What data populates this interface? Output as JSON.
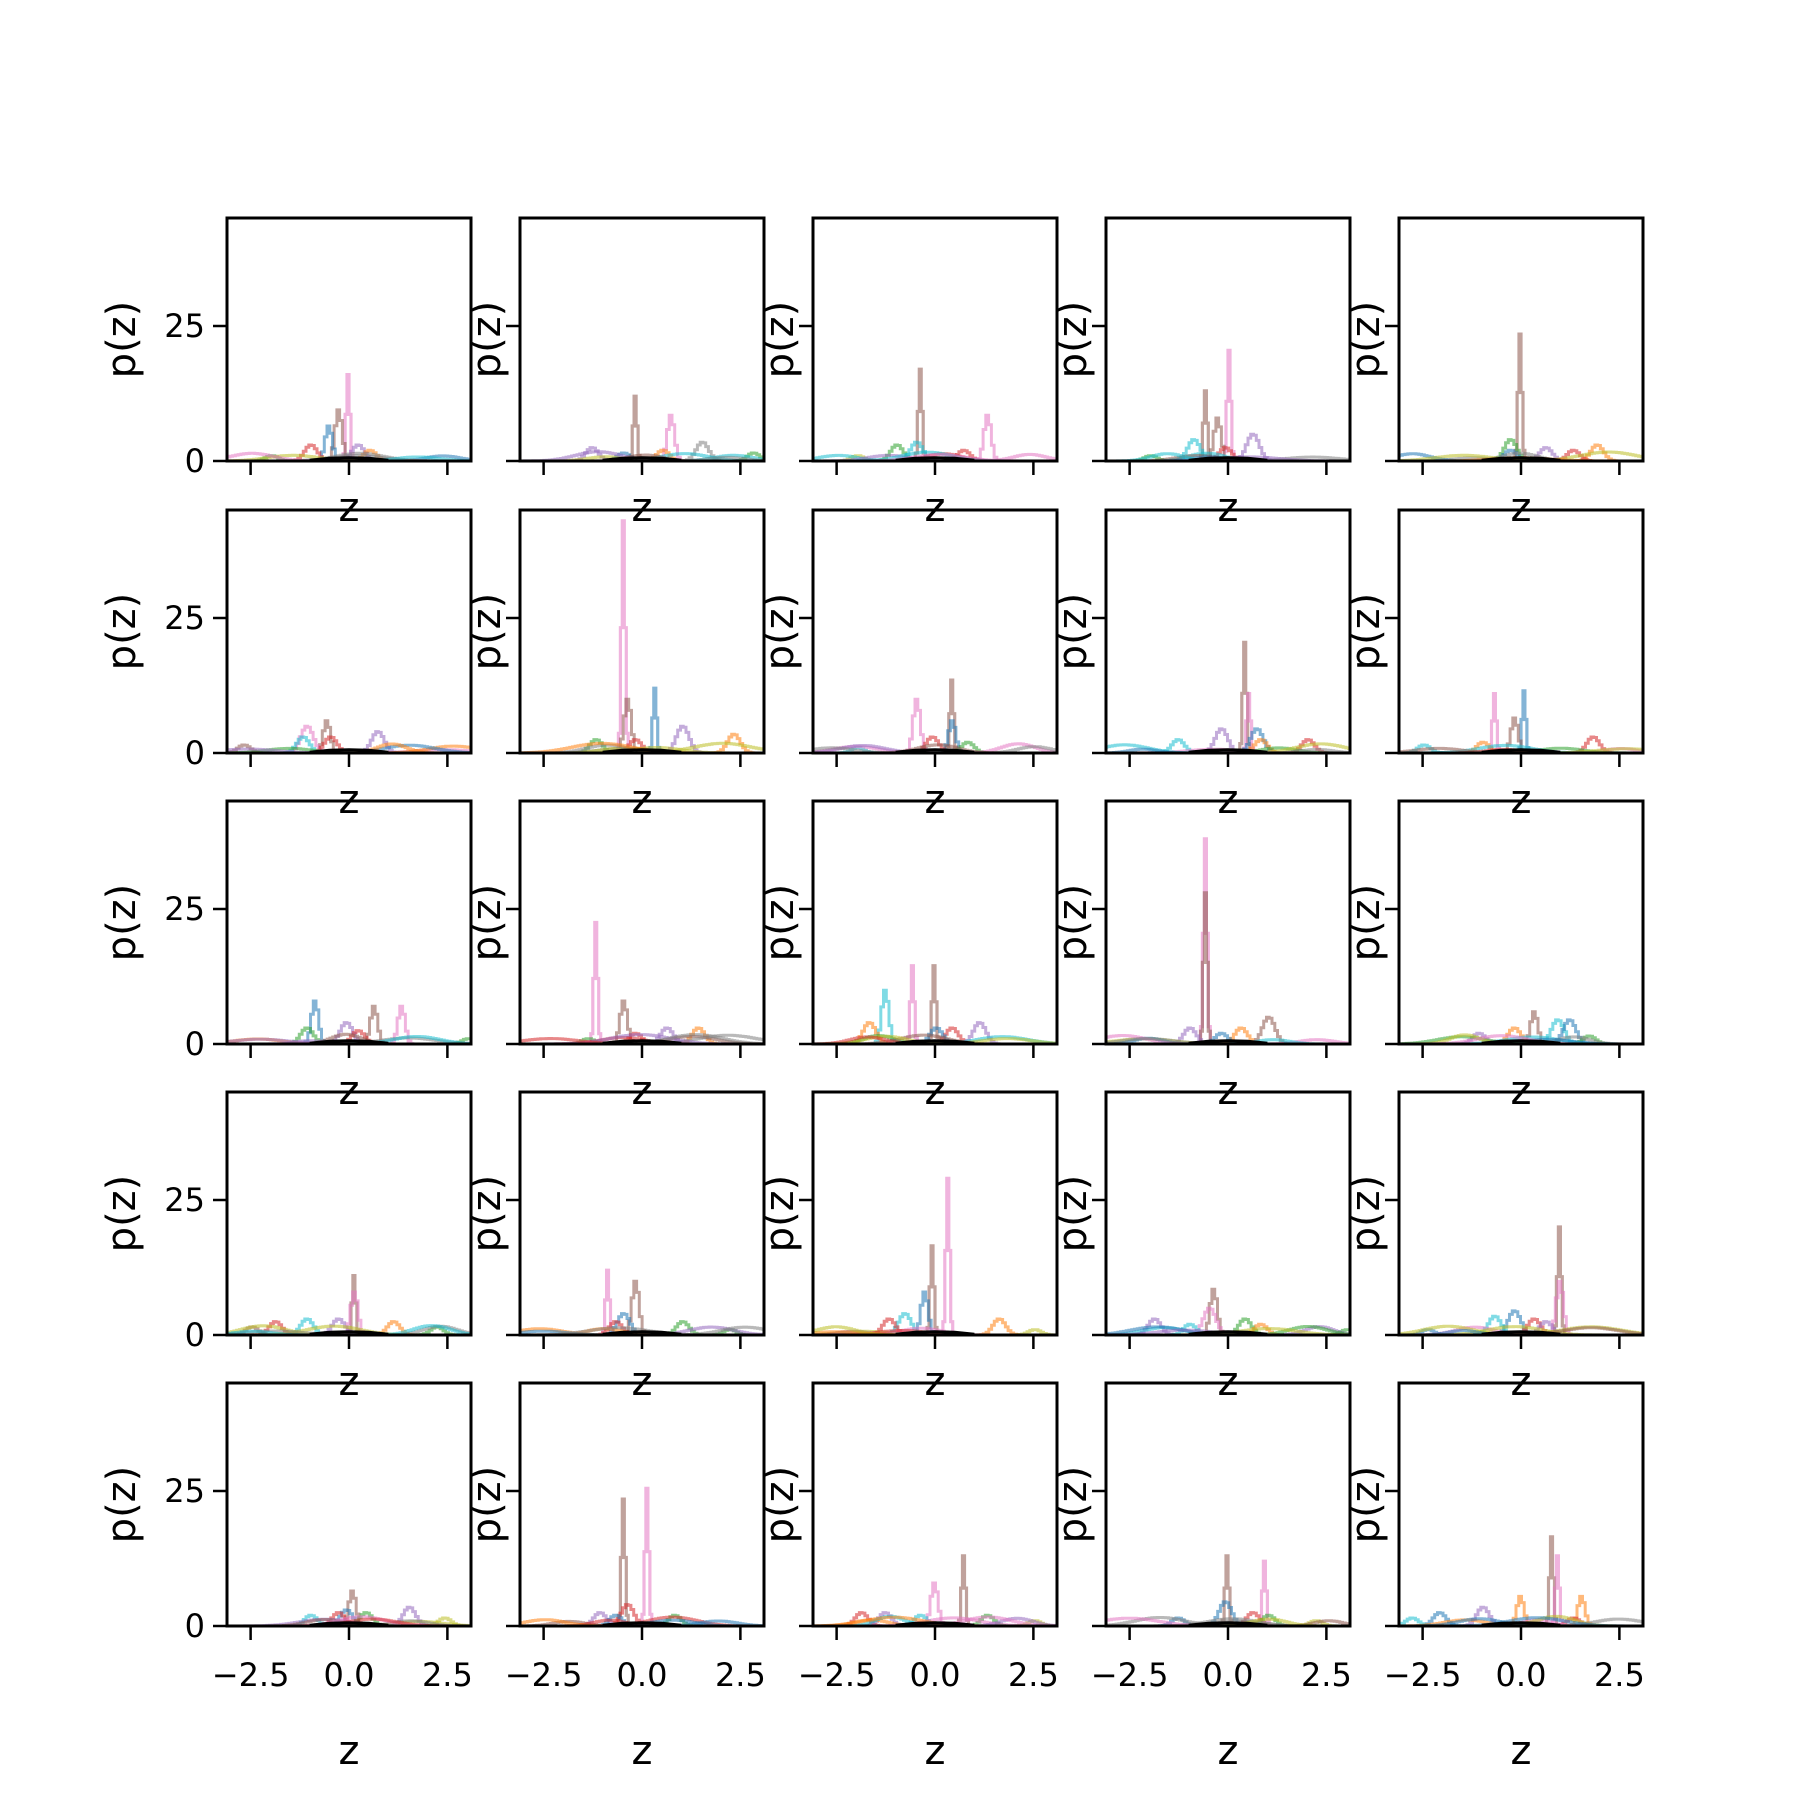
{
  "chart_data": {
    "type": "line",
    "layout": "5x5 grid of small multiples",
    "xlabel": "z",
    "ylabel": "p(z)",
    "xlim": [
      -3.1,
      3.1
    ],
    "ylim": [
      0,
      45
    ],
    "xticks": [
      -2.5,
      0.0,
      2.5
    ],
    "xtick_labels": [
      "−2.5",
      "0.0",
      "2.5"
    ],
    "yticks": [
      0,
      25
    ],
    "ytick_labels": [
      "0",
      "25"
    ],
    "line_alpha": 0.55,
    "series_colors": [
      "#1f77b4",
      "#ff7f0e",
      "#2ca02c",
      "#d62728",
      "#9467bd",
      "#8c564b",
      "#e377c2",
      "#7f7f7f",
      "#bcbd22",
      "#17becf"
    ],
    "baseline_color": "#000000",
    "panels": [
      {
        "row": 1,
        "col": 1,
        "peaks": [
          {
            "c": 6,
            "z": -0.05,
            "h": 16
          },
          {
            "c": 5,
            "z": -0.3,
            "h": 9.5
          },
          {
            "c": 0,
            "z": -0.55,
            "h": 6.5
          },
          {
            "c": 3,
            "z": -1.0,
            "h": 3
          },
          {
            "c": 2,
            "z": -2.0,
            "h": 1
          },
          {
            "c": 4,
            "z": 0.2,
            "h": 3
          },
          {
            "c": 1,
            "z": 0.5,
            "h": 2
          }
        ]
      },
      {
        "row": 1,
        "col": 2,
        "peaks": [
          {
            "c": 5,
            "z": -0.2,
            "h": 12
          },
          {
            "c": 6,
            "z": 0.7,
            "h": 8.5
          },
          {
            "c": 7,
            "z": 1.5,
            "h": 3.5
          },
          {
            "c": 4,
            "z": -1.3,
            "h": 2.5
          },
          {
            "c": 1,
            "z": 0.5,
            "h": 2
          },
          {
            "c": 2,
            "z": 2.8,
            "h": 1.5
          },
          {
            "c": 0,
            "z": -0.5,
            "h": 1.5
          }
        ]
      },
      {
        "row": 1,
        "col": 3,
        "peaks": [
          {
            "c": 5,
            "z": -0.4,
            "h": 17
          },
          {
            "c": 6,
            "z": 1.3,
            "h": 8.5
          },
          {
            "c": 2,
            "z": -1.0,
            "h": 3
          },
          {
            "c": 9,
            "z": -0.5,
            "h": 3.5
          },
          {
            "c": 3,
            "z": 0.7,
            "h": 2
          },
          {
            "c": 8,
            "z": -2.0,
            "h": 1
          }
        ]
      },
      {
        "row": 1,
        "col": 4,
        "peaks": [
          {
            "c": 6,
            "z": 0.0,
            "h": 20.5
          },
          {
            "c": 5,
            "z": -0.6,
            "h": 13
          },
          {
            "c": 5,
            "z": -0.3,
            "h": 8
          },
          {
            "c": 4,
            "z": 0.6,
            "h": 5
          },
          {
            "c": 9,
            "z": -0.9,
            "h": 4
          },
          {
            "c": 3,
            "z": -0.1,
            "h": 2.5
          },
          {
            "c": 2,
            "z": -2.0,
            "h": 1
          }
        ]
      },
      {
        "row": 1,
        "col": 5,
        "peaks": [
          {
            "c": 5,
            "z": -0.05,
            "h": 23.5
          },
          {
            "c": 2,
            "z": -0.3,
            "h": 4
          },
          {
            "c": 1,
            "z": 1.9,
            "h": 3
          },
          {
            "c": 4,
            "z": 0.6,
            "h": 2.5
          },
          {
            "c": 3,
            "z": 1.3,
            "h": 2
          },
          {
            "c": 0,
            "z": -0.3,
            "h": 2
          }
        ]
      },
      {
        "row": 2,
        "col": 1,
        "peaks": [
          {
            "c": 5,
            "z": -0.6,
            "h": 6
          },
          {
            "c": 6,
            "z": -1.1,
            "h": 5
          },
          {
            "c": 4,
            "z": 0.7,
            "h": 4
          },
          {
            "c": 3,
            "z": -0.5,
            "h": 3
          },
          {
            "c": 9,
            "z": -1.2,
            "h": 3
          },
          {
            "c": 5,
            "z": -2.7,
            "h": 1.5
          }
        ]
      },
      {
        "row": 2,
        "col": 2,
        "peaks": [
          {
            "c": 6,
            "z": -0.5,
            "h": 43
          },
          {
            "c": 0,
            "z": 0.3,
            "h": 12
          },
          {
            "c": 5,
            "z": -0.4,
            "h": 10
          },
          {
            "c": 4,
            "z": 1.0,
            "h": 5
          },
          {
            "c": 1,
            "z": 2.3,
            "h": 3.5
          },
          {
            "c": 2,
            "z": -1.2,
            "h": 2.5
          },
          {
            "c": 3,
            "z": -0.2,
            "h": 2.5
          }
        ]
      },
      {
        "row": 2,
        "col": 3,
        "peaks": [
          {
            "c": 5,
            "z": 0.4,
            "h": 13.5
          },
          {
            "c": 6,
            "z": -0.5,
            "h": 10
          },
          {
            "c": 0,
            "z": 0.4,
            "h": 6
          },
          {
            "c": 3,
            "z": -0.1,
            "h": 3
          },
          {
            "c": 2,
            "z": 0.8,
            "h": 2
          },
          {
            "c": 9,
            "z": -2.0,
            "h": 1
          }
        ]
      },
      {
        "row": 2,
        "col": 4,
        "peaks": [
          {
            "c": 5,
            "z": 0.4,
            "h": 20.5
          },
          {
            "c": 6,
            "z": 0.5,
            "h": 11
          },
          {
            "c": 0,
            "z": 0.7,
            "h": 4.5
          },
          {
            "c": 4,
            "z": -0.2,
            "h": 4.5
          },
          {
            "c": 3,
            "z": 2.0,
            "h": 2.5
          },
          {
            "c": 9,
            "z": -1.3,
            "h": 2.5
          },
          {
            "c": 1,
            "z": 0.8,
            "h": 2.5
          }
        ]
      },
      {
        "row": 2,
        "col": 5,
        "peaks": [
          {
            "c": 0,
            "z": 0.05,
            "h": 11.5
          },
          {
            "c": 6,
            "z": -0.7,
            "h": 11
          },
          {
            "c": 5,
            "z": -0.2,
            "h": 6.5
          },
          {
            "c": 3,
            "z": 1.8,
            "h": 3
          },
          {
            "c": 1,
            "z": -1.0,
            "h": 2
          },
          {
            "c": 9,
            "z": -2.5,
            "h": 1.5
          }
        ]
      },
      {
        "row": 3,
        "col": 1,
        "peaks": [
          {
            "c": 0,
            "z": -0.9,
            "h": 8
          },
          {
            "c": 6,
            "z": 1.3,
            "h": 7
          },
          {
            "c": 5,
            "z": 0.6,
            "h": 7
          },
          {
            "c": 4,
            "z": -0.1,
            "h": 4
          },
          {
            "c": 2,
            "z": -1.1,
            "h": 3
          },
          {
            "c": 3,
            "z": 0.2,
            "h": 2.5
          },
          {
            "c": 2,
            "z": 3.0,
            "h": 1
          }
        ]
      },
      {
        "row": 3,
        "col": 2,
        "peaks": [
          {
            "c": 6,
            "z": -1.2,
            "h": 22.5
          },
          {
            "c": 5,
            "z": -0.5,
            "h": 8
          },
          {
            "c": 4,
            "z": 0.6,
            "h": 3
          },
          {
            "c": 1,
            "z": 1.4,
            "h": 3
          },
          {
            "c": 3,
            "z": -0.2,
            "h": 2
          },
          {
            "c": 2,
            "z": -1.4,
            "h": 1
          }
        ]
      },
      {
        "row": 3,
        "col": 3,
        "peaks": [
          {
            "c": 5,
            "z": -0.05,
            "h": 14.5
          },
          {
            "c": 6,
            "z": -0.6,
            "h": 14.5
          },
          {
            "c": 9,
            "z": -1.3,
            "h": 10
          },
          {
            "c": 4,
            "z": 1.1,
            "h": 4
          },
          {
            "c": 1,
            "z": -1.7,
            "h": 4
          },
          {
            "c": 3,
            "z": 0.4,
            "h": 3
          },
          {
            "c": 0,
            "z": 0.0,
            "h": 3
          }
        ]
      },
      {
        "row": 3,
        "col": 4,
        "peaks": [
          {
            "c": 6,
            "z": -0.6,
            "h": 38
          },
          {
            "c": 5,
            "z": -0.6,
            "h": 28
          },
          {
            "c": 5,
            "z": 1.0,
            "h": 5
          },
          {
            "c": 4,
            "z": -1.0,
            "h": 3
          },
          {
            "c": 1,
            "z": 0.3,
            "h": 3
          },
          {
            "c": 0,
            "z": -0.2,
            "h": 2
          }
        ]
      },
      {
        "row": 3,
        "col": 5,
        "peaks": [
          {
            "c": 5,
            "z": 0.3,
            "h": 6
          },
          {
            "c": 9,
            "z": 0.9,
            "h": 4.5
          },
          {
            "c": 0,
            "z": 1.2,
            "h": 4.5
          },
          {
            "c": 1,
            "z": -0.2,
            "h": 3
          },
          {
            "c": 4,
            "z": -1.1,
            "h": 2
          },
          {
            "c": 2,
            "z": 1.7,
            "h": 1.5
          }
        ]
      },
      {
        "row": 4,
        "col": 1,
        "peaks": [
          {
            "c": 5,
            "z": 0.1,
            "h": 11
          },
          {
            "c": 6,
            "z": 0.1,
            "h": 8
          },
          {
            "c": 9,
            "z": -1.1,
            "h": 3
          },
          {
            "c": 4,
            "z": -0.3,
            "h": 3
          },
          {
            "c": 3,
            "z": -1.9,
            "h": 2.5
          },
          {
            "c": 1,
            "z": 1.1,
            "h": 2.5
          },
          {
            "c": 2,
            "z": 2.2,
            "h": 1.5
          },
          {
            "c": 5,
            "z": -2.5,
            "h": 1.5
          }
        ]
      },
      {
        "row": 4,
        "col": 2,
        "peaks": [
          {
            "c": 6,
            "z": -0.9,
            "h": 12
          },
          {
            "c": 5,
            "z": -0.2,
            "h": 10
          },
          {
            "c": 0,
            "z": -0.5,
            "h": 4
          },
          {
            "c": 2,
            "z": 1.0,
            "h": 2.5
          },
          {
            "c": 3,
            "z": -0.7,
            "h": 2.5
          },
          {
            "c": 2,
            "z": 2.2,
            "h": 1
          }
        ]
      },
      {
        "row": 4,
        "col": 3,
        "peaks": [
          {
            "c": 6,
            "z": 0.3,
            "h": 29
          },
          {
            "c": 5,
            "z": -0.1,
            "h": 16.5
          },
          {
            "c": 0,
            "z": -0.3,
            "h": 8
          },
          {
            "c": 9,
            "z": -0.8,
            "h": 4
          },
          {
            "c": 3,
            "z": -1.2,
            "h": 3
          },
          {
            "c": 1,
            "z": 1.6,
            "h": 3
          },
          {
            "c": 8,
            "z": 2.5,
            "h": 1
          }
        ]
      },
      {
        "row": 4,
        "col": 4,
        "peaks": [
          {
            "c": 5,
            "z": -0.4,
            "h": 8.5
          },
          {
            "c": 6,
            "z": -0.5,
            "h": 5
          },
          {
            "c": 4,
            "z": -1.9,
            "h": 3
          },
          {
            "c": 2,
            "z": 0.4,
            "h": 3
          },
          {
            "c": 1,
            "z": 0.8,
            "h": 2
          },
          {
            "c": 9,
            "z": -1.0,
            "h": 2
          },
          {
            "c": 2,
            "z": 3.0,
            "h": 1
          }
        ]
      },
      {
        "row": 4,
        "col": 5,
        "peaks": [
          {
            "c": 5,
            "z": 0.95,
            "h": 20
          },
          {
            "c": 6,
            "z": 0.95,
            "h": 10
          },
          {
            "c": 0,
            "z": -0.2,
            "h": 4.5
          },
          {
            "c": 9,
            "z": -0.7,
            "h": 3.5
          },
          {
            "c": 3,
            "z": 0.3,
            "h": 3
          },
          {
            "c": 4,
            "z": 0.6,
            "h": 2.5
          },
          {
            "c": 0,
            "z": -2.4,
            "h": 1
          }
        ]
      },
      {
        "row": 5,
        "col": 1,
        "peaks": [
          {
            "c": 5,
            "z": 0.05,
            "h": 6.5
          },
          {
            "c": 4,
            "z": 1.5,
            "h": 3.5
          },
          {
            "c": 0,
            "z": -0.1,
            "h": 3
          },
          {
            "c": 3,
            "z": -0.3,
            "h": 2.5
          },
          {
            "c": 9,
            "z": -1.0,
            "h": 2
          },
          {
            "c": 2,
            "z": 0.4,
            "h": 2.5
          },
          {
            "c": 8,
            "z": 2.4,
            "h": 1.5
          }
        ]
      },
      {
        "row": 5,
        "col": 2,
        "peaks": [
          {
            "c": 6,
            "z": 0.1,
            "h": 25.5
          },
          {
            "c": 5,
            "z": -0.5,
            "h": 23.5
          },
          {
            "c": 3,
            "z": -0.4,
            "h": 4
          },
          {
            "c": 4,
            "z": -1.1,
            "h": 2.5
          },
          {
            "c": 0,
            "z": -0.7,
            "h": 2
          },
          {
            "c": 2,
            "z": 0.8,
            "h": 2
          }
        ]
      },
      {
        "row": 5,
        "col": 3,
        "peaks": [
          {
            "c": 5,
            "z": 0.7,
            "h": 13
          },
          {
            "c": 6,
            "z": -0.05,
            "h": 8
          },
          {
            "c": 3,
            "z": -1.9,
            "h": 2.5
          },
          {
            "c": 4,
            "z": -1.3,
            "h": 2.5
          },
          {
            "c": 2,
            "z": 1.3,
            "h": 2
          },
          {
            "c": 9,
            "z": -0.4,
            "h": 2
          },
          {
            "c": 8,
            "z": 2.5,
            "h": 1
          }
        ]
      },
      {
        "row": 5,
        "col": 4,
        "peaks": [
          {
            "c": 5,
            "z": -0.05,
            "h": 13
          },
          {
            "c": 6,
            "z": 0.9,
            "h": 12
          },
          {
            "c": 0,
            "z": -0.1,
            "h": 4.5
          },
          {
            "c": 3,
            "z": 0.6,
            "h": 2.5
          },
          {
            "c": 2,
            "z": 1.0,
            "h": 2
          },
          {
            "c": 0,
            "z": -1.3,
            "h": 1.5
          },
          {
            "c": 8,
            "z": 2.2,
            "h": 1
          }
        ]
      },
      {
        "row": 5,
        "col": 5,
        "peaks": [
          {
            "c": 5,
            "z": 0.75,
            "h": 16.5
          },
          {
            "c": 6,
            "z": 0.9,
            "h": 13
          },
          {
            "c": 1,
            "z": -0.05,
            "h": 5.5
          },
          {
            "c": 1,
            "z": 1.5,
            "h": 5.5
          },
          {
            "c": 4,
            "z": -1.0,
            "h": 3.5
          },
          {
            "c": 0,
            "z": -2.1,
            "h": 2.5
          },
          {
            "c": 9,
            "z": -2.8,
            "h": 1.5
          },
          {
            "c": 3,
            "z": 1.3,
            "h": 1.5
          }
        ]
      }
    ]
  }
}
